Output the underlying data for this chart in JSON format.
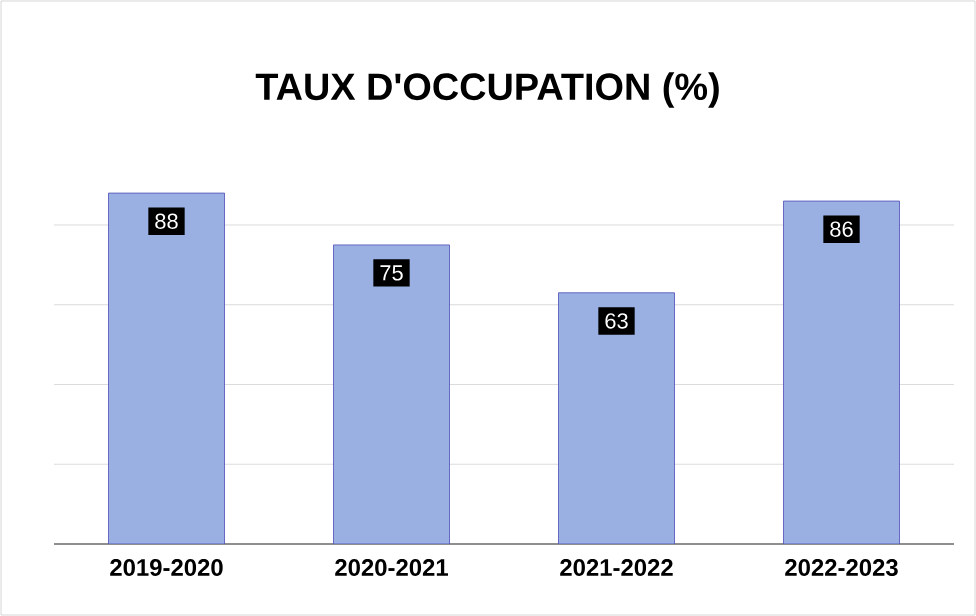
{
  "chart_data": {
    "type": "bar",
    "title": "TAUX D'OCCUPATION (%)",
    "categories": [
      "2019-2020",
      "2020-2021",
      "2021-2022",
      "2022-2023"
    ],
    "values": [
      88,
      75,
      63,
      86
    ],
    "color": "#9bb0e2",
    "tick_labels": "x",
    "grid": "y",
    "data_labels": true
  }
}
